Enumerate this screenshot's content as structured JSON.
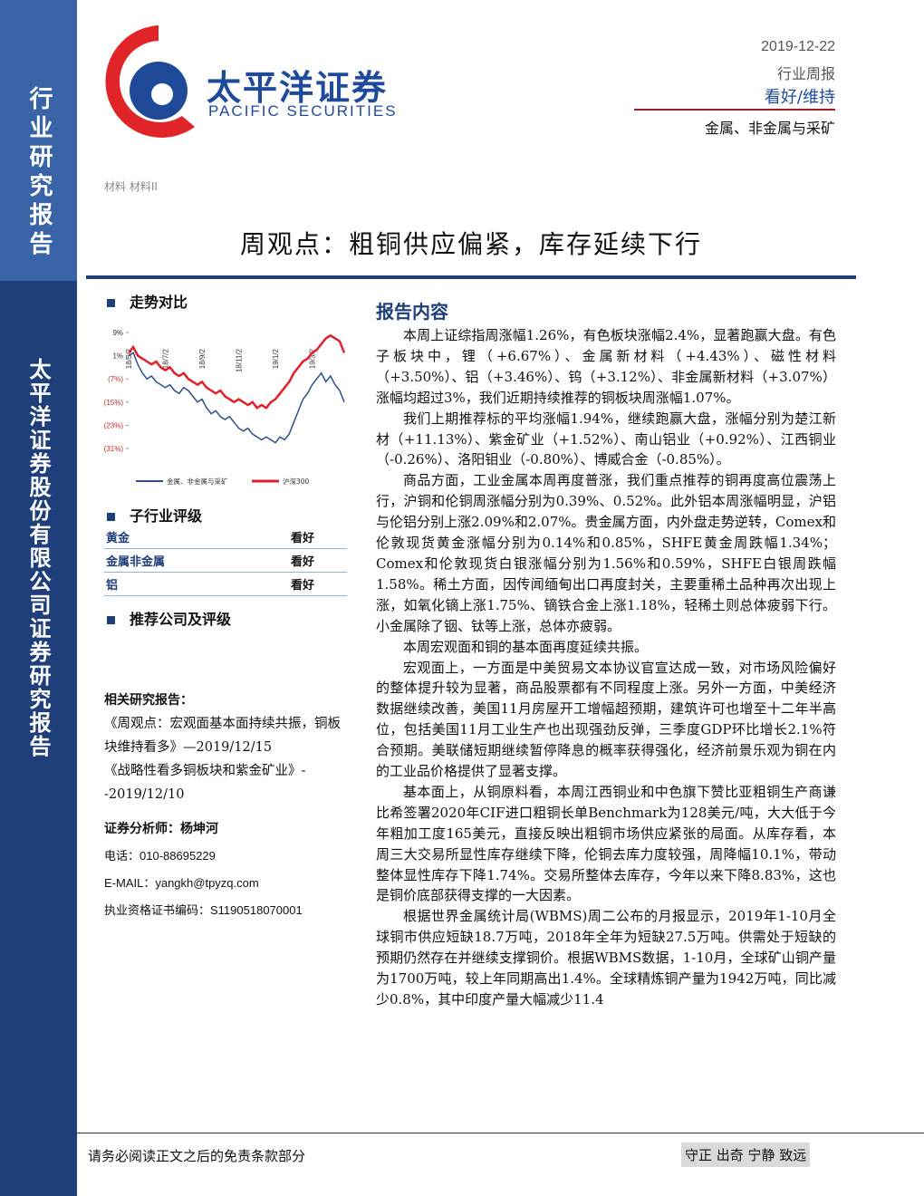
{
  "header": {
    "company_cn": "太平洋证券",
    "company_en": "PACIFIC SECURITIES",
    "date": "2019-12-22",
    "report_type": "行业周报",
    "rating": "看好/维持",
    "industry": "金属、非金属与采矿",
    "category": "材料 材料II"
  },
  "sidebar": {
    "top": "行业研究报告",
    "bottom": "太平洋证券股份有限公司证券研究报告"
  },
  "title": "周观点：粗铜供应偏紧，库存延续下行",
  "left": {
    "trend_heading": "走势对比",
    "chart_data": {
      "type": "line",
      "categories": [
        "18/5/2",
        null,
        null,
        null,
        null,
        null,
        null,
        null,
        "18/7/2",
        null,
        null,
        null,
        null,
        null,
        null,
        null,
        "18/9/2",
        null,
        null,
        null,
        null,
        null,
        null,
        null,
        "18/11/2",
        null,
        null,
        null,
        null,
        null,
        null,
        null,
        "19/1/2",
        null,
        null,
        null,
        null,
        null,
        null,
        null,
        "19/3/2",
        null,
        null,
        null,
        null,
        null,
        null,
        null
      ],
      "series": [
        {
          "name": "金属、非金属与采矿",
          "color": "#2e4f8c",
          "values": [
            1,
            2,
            -2,
            -5,
            -7,
            -6,
            -8,
            -9,
            -10,
            -9,
            -11,
            -12,
            -10,
            -11,
            -13,
            -15,
            -14,
            -17,
            -19,
            -18,
            -20,
            -21,
            -20,
            -22,
            -24,
            -25,
            -24,
            -26,
            -27,
            -28,
            -27,
            -28,
            -29,
            -27,
            -28,
            -26,
            -22,
            -18,
            -14,
            -12,
            -9,
            -7,
            -5,
            -8,
            -6,
            -9,
            -11,
            -15
          ]
        },
        {
          "name": "沪深300",
          "color": "#e0202a",
          "values": [
            2,
            4,
            1,
            0,
            -1,
            -2,
            -1,
            -3,
            -4,
            -3,
            -5,
            -6,
            -5,
            -7,
            -8,
            -9,
            -8,
            -10,
            -11,
            -12,
            -11,
            -13,
            -14,
            -15,
            -14,
            -15,
            -16,
            -15,
            -17,
            -16,
            -17,
            -15,
            -14,
            -12,
            -10,
            -8,
            -5,
            -3,
            -1,
            0,
            2,
            3,
            5,
            7,
            8,
            7,
            6,
            2
          ]
        }
      ],
      "ylim": [
        -31,
        9
      ],
      "yticks": [
        {
          "value": 9,
          "label": "9%"
        },
        {
          "value": 1,
          "label": "1%"
        },
        {
          "value": -7,
          "label": "(7%)"
        },
        {
          "value": -15,
          "label": "(15%)"
        },
        {
          "value": -23,
          "label": "(23%)"
        },
        {
          "value": -31,
          "label": "(31%)"
        }
      ]
    },
    "rating_heading": "子行业评级",
    "ratings": [
      [
        "黄金",
        "看好"
      ],
      [
        "金属非金属",
        "看好"
      ],
      [
        "铝",
        "看好"
      ]
    ],
    "companies_heading": "推荐公司及评级",
    "related_heading": "相关研究报告：",
    "related": [
      "《周观点：宏观面基本面持续共振，铜板块维持看多》—2019/12/15",
      "《战略性看多铜板块和紫金矿业》--2019/12/10"
    ],
    "analyst": "证券分析师：杨坤河",
    "phone": "电话：010-88695229",
    "email": "E-MAIL：yangkh@tpyzq.com",
    "license": "执业资格证书编码：S1190518070001"
  },
  "body": {
    "heading": "报告内容",
    "paragraphs": [
      "本周上证综指周涨幅1.26%，有色板块涨幅2.4%，显著跑赢大盘。有色子板块中，锂（+6.67%）、金属新材料（+4.43%）、磁性材料（+3.50%）、铝（+3.46%）、钨（+3.12%）、非金属新材料（+3.07%）涨幅均超过3%，我们近期持续推荐的铜板块周涨幅1.07%。",
      "我们上期推荐标的平均涨幅1.94%，继续跑赢大盘，涨幅分别为楚江新材（+11.13%）、紫金矿业（+1.52%）、南山铝业（+0.92%）、江西铜业（-0.26%）、洛阳钼业（-0.80%）、博威合金（-0.85%）。",
      "商品方面，工业金属本周再度普涨，我们重点推荐的铜再度高位震荡上行，沪铜和伦铜周涨幅分别为0.39%、0.52%。此外铝本周涨幅明显，沪铝与伦铝分别上涨2.09%和2.07%。贵金属方面，内外盘走势逆转，Comex和伦敦现货黄金涨幅分别为0.14%和0.85%，SHFE黄金周跌幅1.34%；Comex和伦敦现货白银涨幅分别为1.56%和0.59%，SHFE白银周跌幅1.58%。稀土方面，因传闻缅甸出口再度封关，主要重稀土品种再次出现上涨，如氧化镝上涨1.75%、镝铁合金上涨1.18%，轻稀土则总体疲弱下行。小金属除了铟、钛等上涨，总体亦疲弱。",
      "本周宏观面和铜的基本面再度延续共振。",
      "宏观面上，一方面是中美贸易文本协议官宣达成一致，对市场风险偏好的整体提升较为显著，商品股票都有不同程度上涨。另外一方面，中美经济数据继续改善，美国11月房屋开工增幅超预期，建筑许可也增至十二年半高位，包括美国11月工业生产也出现强劲反弹，三季度GDP环比增长2.1%符合预期。美联储短期继续暂停降息的概率获得强化，经济前景乐观为铜在内的工业品价格提供了显著支撑。",
      "基本面上，从铜原料看，本周江西铜业和中色旗下赞比亚粗铜生产商谦比希签署2020年CIF进口粗铜长单Benchmark为128美元/吨，大大低于今年粗加工度165美元，直接反映出粗铜市场供应紧张的局面。从库存看，本周三大交易所显性库存继续下降，伦铜去库力度较强，周降幅10.1%，带动整体显性库存下降1.74%。交易所整体去库存，今年以来下降8.83%，这也是铜价底部获得支撑的一大因素。",
      "根据世界金属统计局(WBMS)周二公布的月报显示，2019年1-10月全球铜市供应短缺18.7万吨，2018年全年为短缺27.5万吨。供需处于短缺的预期仍然存在并继续支撑铜价。根据WBMS数据，1-10月，全球矿山铜产量为1700万吨，较上年同期高出1.4%。全球精炼铜产量为1942万吨，同比减少0.8%，其中印度产量大幅减少11.4"
    ]
  },
  "footer": {
    "disclaimer": "请务必阅读正文之后的免责条款部分",
    "motto": "守正 出奇 宁静 致远"
  }
}
